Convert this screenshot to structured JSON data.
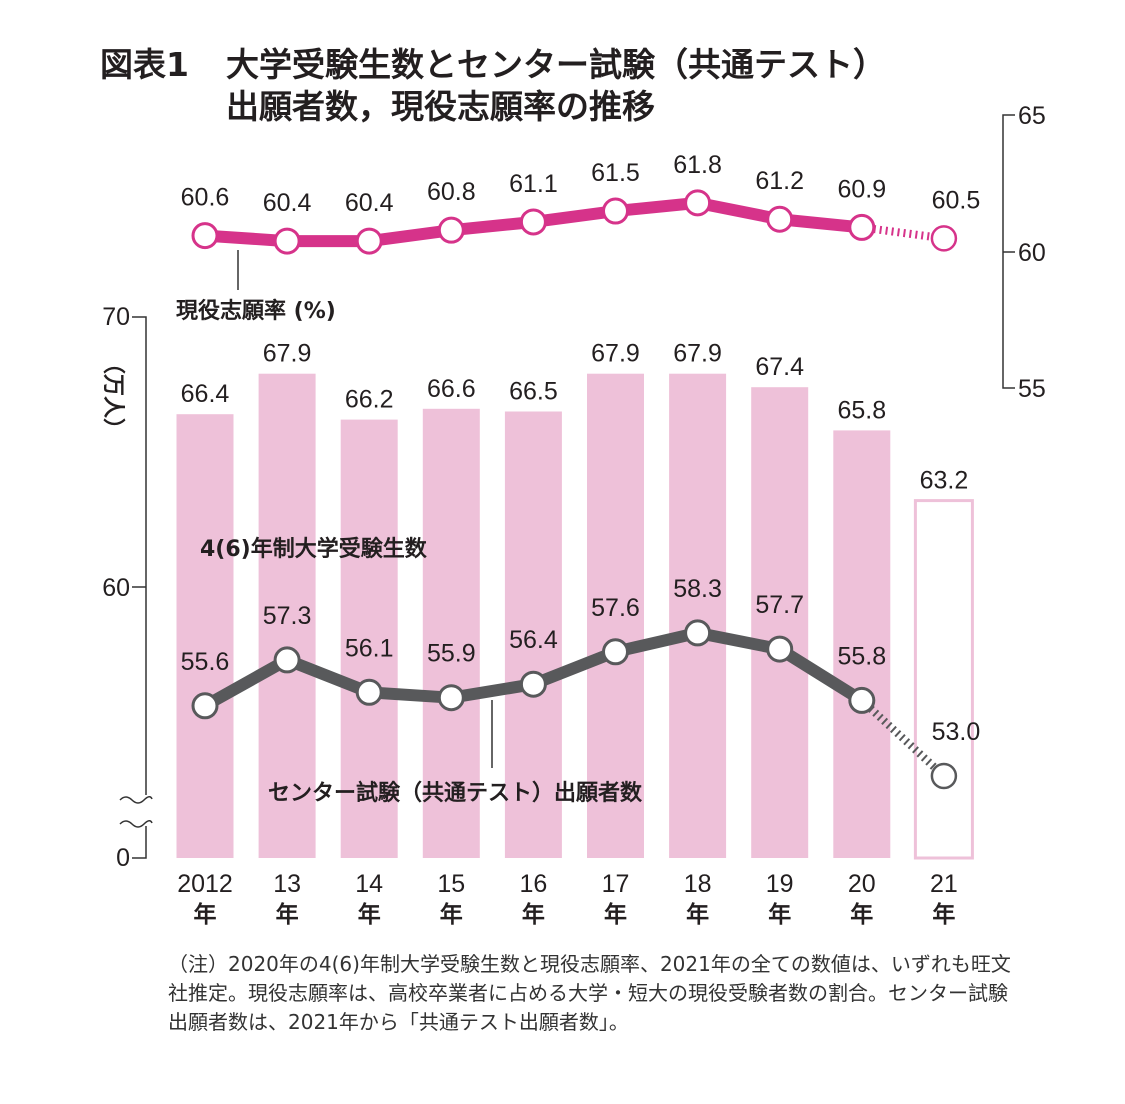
{
  "title": {
    "fig_label": "図表1",
    "line1": "大学受験生数とセンター試験（共通テスト）",
    "line2": "出願者数，現役志願率の推移"
  },
  "chart_data": {
    "type": "bar+line",
    "title": "大学受験生数とセンター試験（共通テスト）出願者数，現役志願率の推移",
    "categories": [
      "2012",
      "13",
      "14",
      "15",
      "16",
      "17",
      "18",
      "19",
      "20",
      "21"
    ],
    "category_suffix": "年",
    "left_axis": {
      "label": "（万人）",
      "ticks": [
        "70",
        "60",
        "0"
      ],
      "ylim": [
        0,
        70
      ],
      "break": "between 0 and ~52"
    },
    "right_axis": {
      "ticks": [
        "65",
        "60",
        "55"
      ],
      "ylim": [
        55,
        65
      ]
    },
    "series": [
      {
        "name": "4(6)年制大学受験生数",
        "type": "bar",
        "axis": "left",
        "values": [
          66.4,
          67.9,
          66.2,
          66.6,
          66.5,
          67.9,
          67.9,
          67.4,
          65.8,
          63.2
        ],
        "labels": [
          "66.4",
          "67.9",
          "66.2",
          "66.6",
          "66.5",
          "67.9",
          "67.9",
          "67.4",
          "65.8",
          "63.2"
        ],
        "estimated_from_index": 9,
        "color": "#eec1d9"
      },
      {
        "name": "センター試験（共通テスト）出願者数",
        "type": "line",
        "axis": "left",
        "values": [
          55.6,
          57.3,
          56.1,
          55.9,
          56.4,
          57.6,
          58.3,
          57.7,
          55.8,
          53.0
        ],
        "labels": [
          "55.6",
          "57.3",
          "56.1",
          "55.9",
          "56.4",
          "57.6",
          "58.3",
          "57.7",
          "55.8",
          "53.0"
        ],
        "estimated_from_index": 9,
        "color": "#58595b"
      },
      {
        "name": "現役志願率 (%)",
        "type": "line",
        "axis": "right",
        "values": [
          60.6,
          60.4,
          60.4,
          60.8,
          61.1,
          61.5,
          61.8,
          61.2,
          60.9,
          60.5
        ],
        "labels": [
          "60.6",
          "60.4",
          "60.4",
          "60.8",
          "61.1",
          "61.5",
          "61.8",
          "61.2",
          "60.9",
          "60.5"
        ],
        "estimated_from_index": 9,
        "color": "#d6338a"
      }
    ],
    "annotations": {
      "bars_label": "4(6)年制大学受験生数",
      "applicants_label": "センター試験（共通テスト）出願者数",
      "rate_label": "現役志願率 (%)"
    },
    "grid": false
  },
  "note": "（注）2020年の4(6)年制大学受験生数と現役志願率、2021年の全ての数値は、いずれも旺文社推定。現役志願率は、高校卒業者に占める大学・短大の現役受験者数の割合。センター試験出願者数は、2021年から「共通テスト出願者数」。"
}
